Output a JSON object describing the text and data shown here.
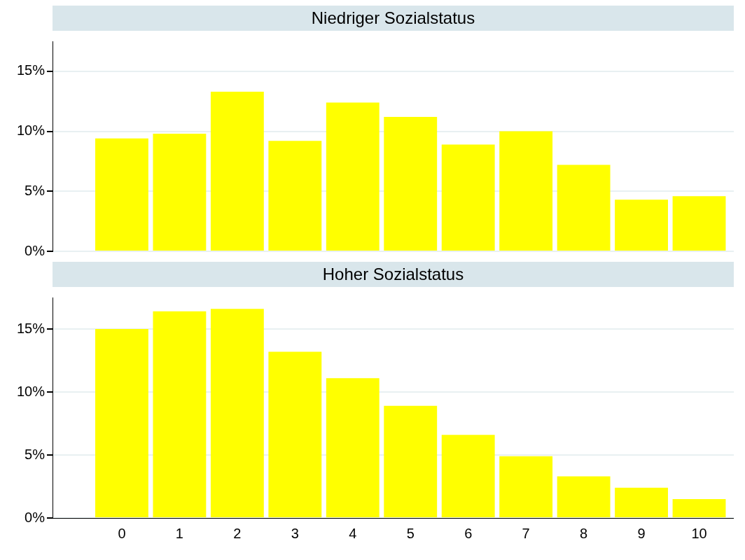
{
  "chart_data": [
    {
      "type": "bar",
      "title": "Niedriger Sozialstatus",
      "x": [
        0,
        1,
        2,
        3,
        4,
        5,
        6,
        7,
        8,
        9,
        10
      ],
      "values": [
        9.4,
        9.8,
        13.3,
        9.2,
        12.4,
        11.2,
        8.9,
        10.0,
        7.2,
        4.3,
        4.6
      ],
      "color": "#ffff00",
      "xlim": [
        -1.2,
        10.6
      ],
      "xticks": [
        0,
        1,
        2,
        3,
        4,
        5,
        6,
        7,
        8,
        9,
        10
      ],
      "ylim": [
        0,
        17.5
      ],
      "yticks": [
        {
          "value": 0,
          "label": "0%"
        },
        {
          "value": 5,
          "label": "5%"
        },
        {
          "value": 10,
          "label": "10%"
        },
        {
          "value": 15,
          "label": "15%"
        }
      ],
      "grid": "y",
      "tick_labels": "y"
    },
    {
      "type": "bar",
      "title": "Hoher Sozialstatus",
      "x": [
        0,
        1,
        2,
        3,
        4,
        5,
        6,
        7,
        8,
        9,
        10
      ],
      "values": [
        15.0,
        16.4,
        16.6,
        13.2,
        11.1,
        8.9,
        6.6,
        4.9,
        3.3,
        2.4,
        1.5
      ],
      "color": "#ffff00",
      "xlim": [
        -1.2,
        10.6
      ],
      "xticks": [
        0,
        1,
        2,
        3,
        4,
        5,
        6,
        7,
        8,
        9,
        10
      ],
      "ylim": [
        0,
        17.5
      ],
      "yticks": [
        {
          "value": 0,
          "label": "0%"
        },
        {
          "value": 5,
          "label": "5%"
        },
        {
          "value": 10,
          "label": "10%"
        },
        {
          "value": 15,
          "label": "15%"
        }
      ],
      "grid": "y"
    }
  ]
}
